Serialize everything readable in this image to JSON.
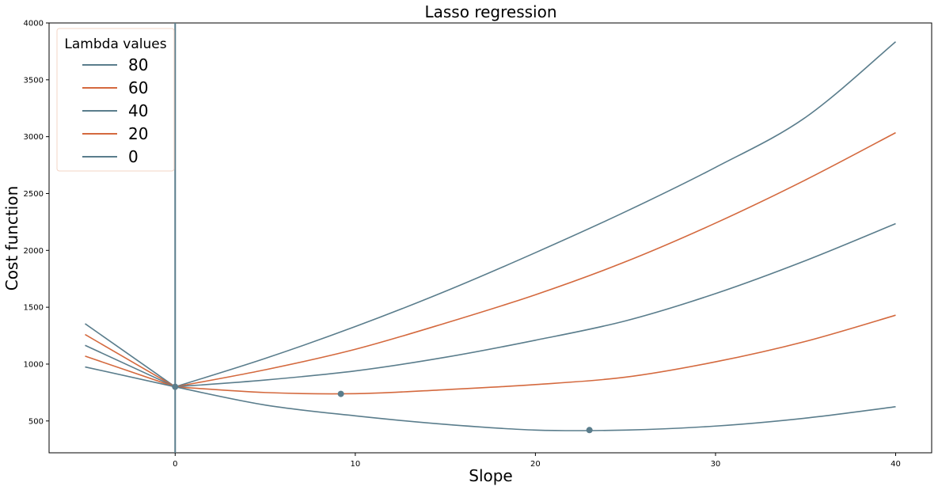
{
  "chart_data": {
    "type": "line",
    "title": "Lasso regression",
    "xlabel": "Slope",
    "ylabel": "Cost function",
    "xlim": [
      -7,
      42
    ],
    "ylim": [
      220,
      4000
    ],
    "xticks": [
      0,
      10,
      20,
      30,
      40
    ],
    "yticks": [
      500,
      1000,
      1500,
      2000,
      2500,
      3000,
      3500,
      4000
    ],
    "grid": false,
    "legend": {
      "title": "Lambda values",
      "position": "top-left"
    },
    "colors": {
      "blue": "#5a7d8c",
      "orange": "#d4693e",
      "frame": "#000000",
      "legend_border": "#f3d4c5"
    },
    "series": [
      {
        "name": "80",
        "color": "#5a7d8c",
        "x": [
          -5,
          0,
          5,
          10,
          15,
          20,
          25,
          30,
          35,
          40
        ],
        "y": [
          1355,
          800,
          1050,
          1330,
          1640,
          1980,
          2340,
          2730,
          3170,
          3835
        ]
      },
      {
        "name": "60",
        "color": "#d4693e",
        "x": [
          -5,
          0,
          5,
          10,
          15,
          20,
          25,
          30,
          35,
          40
        ],
        "y": [
          1260,
          800,
          950,
          1130,
          1360,
          1610,
          1900,
          2240,
          2620,
          3035
        ]
      },
      {
        "name": "40",
        "color": "#5a7d8c",
        "x": [
          -5,
          0,
          5,
          10,
          15,
          20,
          25,
          30,
          35,
          40
        ],
        "y": [
          1165,
          800,
          860,
          940,
          1060,
          1210,
          1380,
          1620,
          1910,
          2235
        ]
      },
      {
        "name": "20",
        "color": "#d4693e",
        "x": [
          -5,
          0,
          5,
          10,
          15,
          20,
          25,
          30,
          35,
          40
        ],
        "y": [
          1070,
          800,
          750,
          740,
          775,
          820,
          885,
          1020,
          1200,
          1430
        ]
      },
      {
        "name": "0",
        "color": "#5a7d8c",
        "x": [
          -5,
          0,
          5,
          10,
          15,
          20,
          25,
          30,
          35,
          40
        ],
        "y": [
          975,
          800,
          640,
          545,
          470,
          420,
          420,
          455,
          525,
          625
        ]
      }
    ],
    "markers": [
      {
        "x": 0,
        "y": 800
      },
      {
        "x": 9.2,
        "y": 738
      },
      {
        "x": 23,
        "y": 420
      }
    ],
    "vertical_line_x": 0
  }
}
